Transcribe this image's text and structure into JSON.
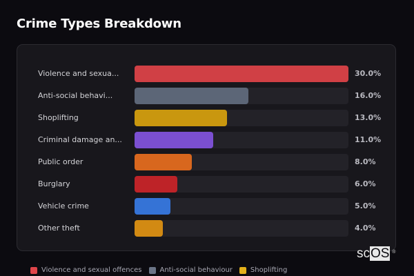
{
  "title": "Crime Types Breakdown",
  "chart_data": {
    "type": "bar",
    "orientation": "horizontal",
    "title": "Crime Types Breakdown",
    "categories": [
      "Violence and sexual offences",
      "Anti-social behaviour",
      "Shoplifting",
      "Criminal damage and arson",
      "Public order",
      "Burglary",
      "Vehicle crime",
      "Other theft"
    ],
    "display_labels": [
      "Violence and sexua...",
      "Anti-social behavi...",
      "Shoplifting",
      "Criminal damage an...",
      "Public order",
      "Burglary",
      "Vehicle crime",
      "Other theft"
    ],
    "values": [
      30.0,
      16.0,
      13.0,
      11.0,
      8.0,
      6.0,
      5.0,
      4.0
    ],
    "value_labels": [
      "30.0%",
      "16.0%",
      "13.0%",
      "11.0%",
      "8.0%",
      "6.0%",
      "5.0%",
      "4.0%"
    ],
    "colors": [
      "#d04045",
      "#5c6677",
      "#c9970f",
      "#7b4fd1",
      "#d8671e",
      "#be2328",
      "#3573d6",
      "#d28a13"
    ],
    "xlim": [
      0,
      30
    ],
    "grid": false,
    "legend": [
      "Violence and sexual offences",
      "Anti-social behaviour",
      "Shoplifting"
    ],
    "legend_position": "bottom"
  },
  "legend": [
    {
      "label": "Violence and sexual offences",
      "color": "#e0454a"
    },
    {
      "label": "Anti-social behaviour",
      "color": "#6b7587"
    },
    {
      "label": "Shoplifting",
      "color": "#e3b01a"
    }
  ],
  "logo": {
    "prefix": "sc",
    "highlight": "OS",
    "mark": "®"
  }
}
